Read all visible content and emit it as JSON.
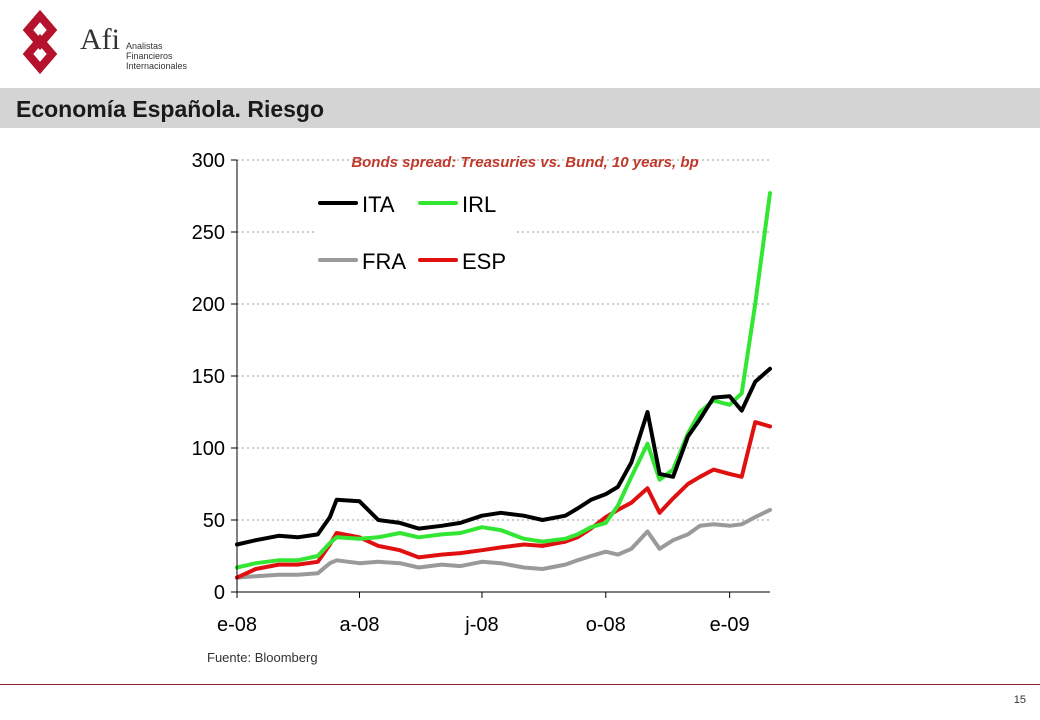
{
  "header": {
    "brand_name": "Afi",
    "brand_subtitle": [
      "Analistas",
      "Financieros",
      "Internacionales"
    ],
    "title": "Economía Española. Riesgo"
  },
  "footer": {
    "source": "Fuente: Bloomberg",
    "page_number": "15"
  },
  "colors": {
    "logo": "#b5122e",
    "title_bar": "#d4d4d4",
    "chart_title": "#c0392b",
    "ITA": "#000000",
    "IRL": "#33e633",
    "FRA": "#9a9a9a",
    "ESP": "#e01010"
  },
  "chart_data": {
    "type": "line",
    "title": "Bonds spread: Treasuries vs. Bund, 10 years, bp",
    "xlabel": "",
    "ylabel": "",
    "ylim": [
      0,
      300
    ],
    "yticks": [
      0,
      50,
      100,
      150,
      200,
      250,
      300
    ],
    "xlim": [
      "2008-01-01",
      "2009-01-31"
    ],
    "xticks": [
      {
        "label": "e-08",
        "date": "2008-01-01"
      },
      {
        "label": "a-08",
        "date": "2008-04-01"
      },
      {
        "label": "j-08",
        "date": "2008-07-01"
      },
      {
        "label": "o-08",
        "date": "2008-10-01"
      },
      {
        "label": "e-09",
        "date": "2009-01-01"
      }
    ],
    "grid": "horizontal dashed",
    "legend_position": "top-left",
    "x": [
      "2008-01-01",
      "2008-01-15",
      "2008-02-01",
      "2008-02-15",
      "2008-03-01",
      "2008-03-10",
      "2008-03-15",
      "2008-04-01",
      "2008-04-15",
      "2008-05-01",
      "2008-05-15",
      "2008-06-01",
      "2008-06-15",
      "2008-07-01",
      "2008-07-15",
      "2008-08-01",
      "2008-08-15",
      "2008-09-01",
      "2008-09-10",
      "2008-09-20",
      "2008-10-01",
      "2008-10-10",
      "2008-10-20",
      "2008-11-01",
      "2008-11-10",
      "2008-11-20",
      "2008-12-01",
      "2008-12-10",
      "2008-12-20",
      "2009-01-01",
      "2009-01-10",
      "2009-01-20",
      "2009-01-31"
    ],
    "series": [
      {
        "name": "ITA",
        "values": [
          33,
          36,
          39,
          38,
          40,
          52,
          64,
          63,
          50,
          48,
          44,
          46,
          48,
          53,
          55,
          53,
          50,
          53,
          58,
          64,
          68,
          73,
          90,
          125,
          82,
          80,
          108,
          120,
          135,
          136,
          126,
          146,
          155
        ]
      },
      {
        "name": "IRL",
        "values": [
          17,
          20,
          22,
          22,
          25,
          34,
          38,
          37,
          38,
          41,
          38,
          40,
          41,
          45,
          43,
          37,
          35,
          37,
          40,
          45,
          48,
          60,
          80,
          103,
          78,
          85,
          110,
          125,
          133,
          130,
          138,
          200,
          277
        ]
      },
      {
        "name": "FRA",
        "values": [
          10,
          11,
          12,
          12,
          13,
          20,
          22,
          20,
          21,
          20,
          17,
          19,
          18,
          21,
          20,
          17,
          16,
          19,
          22,
          25,
          28,
          26,
          30,
          42,
          30,
          36,
          40,
          46,
          47,
          46,
          47,
          52,
          57
        ]
      },
      {
        "name": "ESP",
        "values": [
          10,
          16,
          19,
          19,
          21,
          33,
          41,
          38,
          32,
          29,
          24,
          26,
          27,
          29,
          31,
          33,
          32,
          35,
          38,
          44,
          52,
          57,
          62,
          72,
          55,
          65,
          75,
          80,
          85,
          82,
          80,
          118,
          115
        ]
      }
    ]
  }
}
